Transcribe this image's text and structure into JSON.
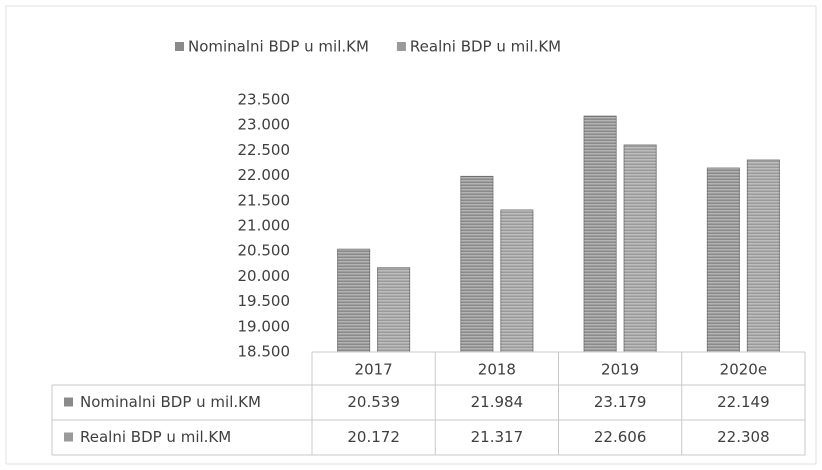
{
  "chart_data": {
    "type": "bar",
    "categories": [
      "2017",
      "2018",
      "2019",
      "2020e"
    ],
    "series": [
      {
        "name": "Nominalni BDP u mil.KM",
        "color": "#8a8a8a",
        "values": [
          20539,
          21984,
          23179,
          22149
        ],
        "value_labels": [
          "20.539",
          "21.984",
          "23.179",
          "22.149"
        ]
      },
      {
        "name": "Realni BDP u mil.KM",
        "color": "#9a9a9a",
        "values": [
          20172,
          21317,
          22606,
          22308
        ],
        "value_labels": [
          "20.172",
          "21.317",
          "22.606",
          "22.308"
        ]
      }
    ],
    "ylim": [
      18500,
      23500
    ],
    "yticks": [
      {
        "value": 18500,
        "label": "18.500"
      },
      {
        "value": 19000,
        "label": "19.000"
      },
      {
        "value": 19500,
        "label": "19.500"
      },
      {
        "value": 20000,
        "label": "20.000"
      },
      {
        "value": 20500,
        "label": "20.500"
      },
      {
        "value": 21000,
        "label": "21.000"
      },
      {
        "value": 21500,
        "label": "21.500"
      },
      {
        "value": 22000,
        "label": "22.000"
      },
      {
        "value": 22500,
        "label": "22.500"
      },
      {
        "value": 23000,
        "label": "23.000"
      },
      {
        "value": 23500,
        "label": "23.500"
      }
    ],
    "legend": "top"
  }
}
